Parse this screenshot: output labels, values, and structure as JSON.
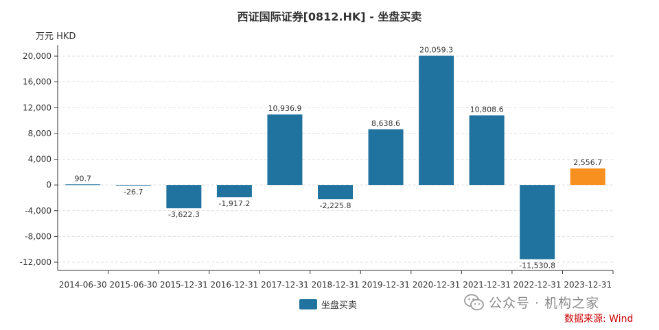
{
  "title": "西证国际证券[0812.HK] - 坐盘买卖",
  "unit": "万元  HKD",
  "legend_label": "坐盘买卖",
  "watermark": "公众号 · 机构之家",
  "source": "数据来源: Wind",
  "colors": {
    "bar": "#20739f",
    "highlight": "#f7901e",
    "grid": "#dddddd",
    "axis": "#333333"
  },
  "icons": {
    "watermark_icon": "wechat-icon"
  },
  "chart_data": {
    "type": "bar",
    "title": "西证国际证券[0812.HK] - 坐盘买卖",
    "ylabel": "万元  HKD",
    "xlabel": "",
    "categories": [
      "2014-06-30",
      "2015-06-30",
      "2015-12-31",
      "2016-12-31",
      "2017-12-31",
      "2018-12-31",
      "2019-12-31",
      "2020-12-31",
      "2021-12-31",
      "2022-12-31",
      "2023-12-31"
    ],
    "series": [
      {
        "name": "坐盘买卖",
        "values": [
          90.7,
          -26.7,
          -3622.3,
          -1917.2,
          10936.9,
          -2225.8,
          8638.6,
          20059.3,
          10808.6,
          -11530.8,
          2556.7
        ],
        "labels": [
          "90.7",
          "-26.7",
          "-3,622.3",
          "-1,917.2",
          "10,936.9",
          "-2,225.8",
          "8,638.6",
          "20,059.3",
          "10,808.6",
          "-11,530.8",
          "2,556.7"
        ]
      }
    ],
    "highlight_index": 10,
    "ylim": [
      -13000,
      21000
    ],
    "yticks": [
      20000,
      16000,
      12000,
      8000,
      4000,
      0,
      -4000,
      -8000,
      -12000
    ],
    "ytick_labels": [
      "20,000",
      "16,000",
      "12,000",
      "8,000",
      "4,000",
      "0",
      "-4,000",
      "-8,000",
      "-12,000"
    ],
    "grid": true,
    "legend_position": "bottom"
  }
}
